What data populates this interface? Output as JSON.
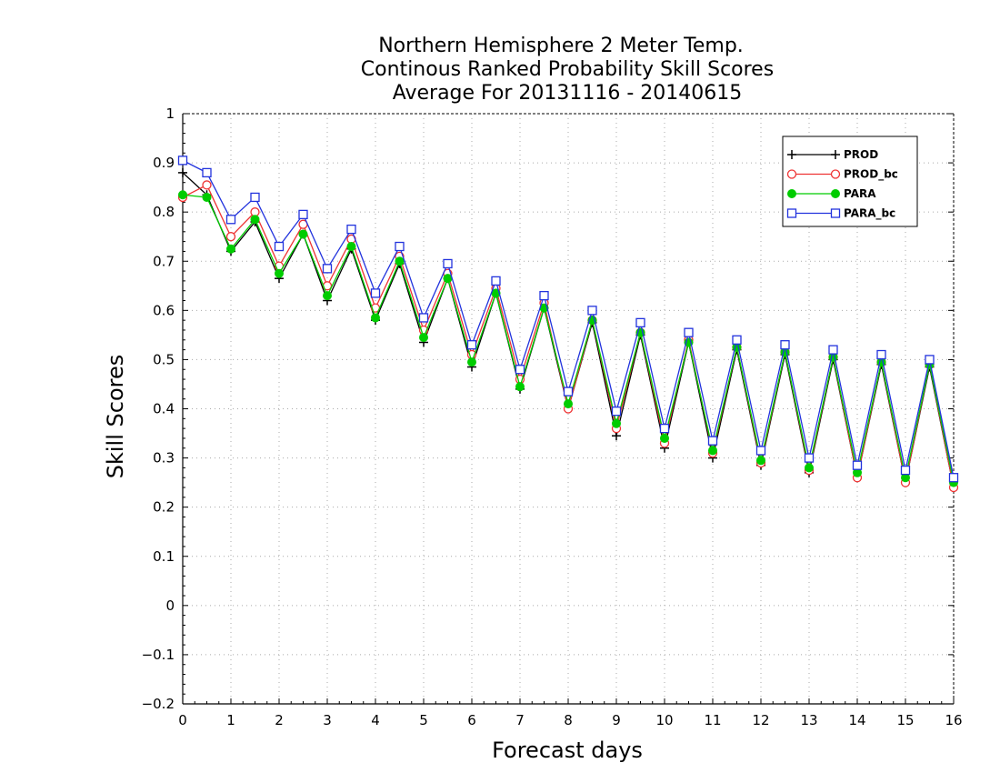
{
  "chart_data": {
    "type": "line",
    "title": [
      "Northern Hemisphere 2 Meter Temp.",
      "Continous Ranked Probability Skill Scores",
      "Average For 20131116 - 20140615"
    ],
    "xlabel": "Forecast days",
    "ylabel": "Skill Scores",
    "xlim": [
      0,
      16
    ],
    "ylim": [
      -0.2,
      1
    ],
    "xticks": [
      0,
      1,
      2,
      3,
      4,
      5,
      6,
      7,
      8,
      9,
      10,
      11,
      12,
      13,
      14,
      15,
      16
    ],
    "xtick_labels": [
      "0",
      "1",
      "2",
      "3",
      "4",
      "5",
      "6",
      "7",
      "8",
      "9",
      "10",
      "11",
      "12",
      "13",
      "14",
      "15",
      "16"
    ],
    "yticks": [
      -0.2,
      -0.1,
      0,
      0.1,
      0.2,
      0.3,
      0.4,
      0.5,
      0.6,
      0.7,
      0.8,
      0.9,
      1
    ],
    "ytick_labels": [
      "−0.2",
      "−0.1",
      "0",
      "0.1",
      "0.2",
      "0.3",
      "0.4",
      "0.5",
      "0.6",
      "0.7",
      "0.8",
      "0.9",
      "1"
    ],
    "grid": true,
    "legend_position": "top-right",
    "x": [
      0,
      0.5,
      1,
      1.5,
      2,
      2.5,
      3,
      3.5,
      4,
      4.5,
      5,
      5.5,
      6,
      6.5,
      7,
      7.5,
      8,
      8.5,
      9,
      9.5,
      10,
      10.5,
      11,
      11.5,
      12,
      12.5,
      13,
      13.5,
      14,
      14.5,
      15,
      15.5,
      16
    ],
    "series": [
      {
        "name": "PROD",
        "color": "#000000",
        "marker": "plus",
        "values": [
          0.88,
          0.835,
          0.72,
          0.78,
          0.665,
          0.755,
          0.62,
          0.725,
          0.58,
          0.695,
          0.535,
          0.665,
          0.485,
          0.635,
          0.44,
          0.605,
          0.4,
          0.575,
          0.345,
          0.55,
          0.32,
          0.535,
          0.3,
          0.52,
          0.285,
          0.51,
          0.27,
          0.5,
          0.26,
          0.49,
          0.25,
          0.485,
          0.24
        ]
      },
      {
        "name": "PROD_bc",
        "color": "#ee3333",
        "marker": "circle-open",
        "values": [
          0.83,
          0.855,
          0.75,
          0.8,
          0.69,
          0.775,
          0.65,
          0.745,
          0.605,
          0.71,
          0.56,
          0.675,
          0.51,
          0.645,
          0.46,
          0.615,
          0.4,
          0.58,
          0.36,
          0.555,
          0.33,
          0.54,
          0.31,
          0.525,
          0.29,
          0.515,
          0.275,
          0.505,
          0.26,
          0.495,
          0.25,
          0.49,
          0.24
        ]
      },
      {
        "name": "PARA",
        "color": "#00cc00",
        "marker": "circle-filled",
        "values": [
          0.835,
          0.83,
          0.725,
          0.785,
          0.675,
          0.755,
          0.63,
          0.73,
          0.585,
          0.7,
          0.545,
          0.665,
          0.495,
          0.635,
          0.445,
          0.605,
          0.41,
          0.58,
          0.37,
          0.555,
          0.34,
          0.535,
          0.315,
          0.525,
          0.295,
          0.515,
          0.28,
          0.505,
          0.27,
          0.495,
          0.26,
          0.49,
          0.25
        ]
      },
      {
        "name": "PARA_bc",
        "color": "#2233dd",
        "marker": "square-open",
        "values": [
          0.905,
          0.88,
          0.785,
          0.83,
          0.73,
          0.795,
          0.685,
          0.765,
          0.635,
          0.73,
          0.585,
          0.695,
          0.53,
          0.66,
          0.48,
          0.63,
          0.435,
          0.6,
          0.395,
          0.575,
          0.36,
          0.555,
          0.335,
          0.54,
          0.315,
          0.53,
          0.3,
          0.52,
          0.285,
          0.51,
          0.275,
          0.5,
          0.26
        ]
      }
    ]
  }
}
